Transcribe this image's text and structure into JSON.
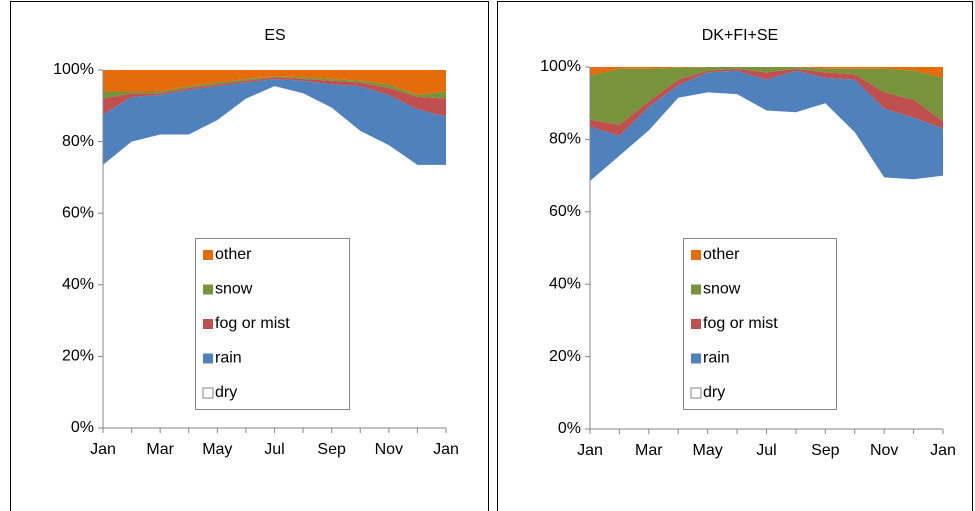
{
  "chart_data": [
    {
      "type": "stacked-area",
      "title": "ES",
      "categories": [
        "Jan",
        null,
        "Mar",
        null,
        "May",
        null,
        "Jul",
        null,
        "Sep",
        null,
        "Nov",
        null,
        "Jan"
      ],
      "ylim": [
        0,
        100
      ],
      "yticks": [
        {
          "value": 0,
          "label": "0%"
        },
        {
          "value": 20,
          "label": "20%"
        },
        {
          "value": 40,
          "label": "40%"
        },
        {
          "value": 60,
          "label": "60%"
        },
        {
          "value": 80,
          "label": "80%"
        },
        {
          "value": 100,
          "label": "100%"
        }
      ],
      "series": [
        {
          "name": "dry",
          "color": "#ffffff",
          "values": [
            73.5,
            80,
            82,
            82,
            86,
            92,
            95.5,
            93.5,
            89.5,
            83,
            79,
            73.5,
            73.5
          ]
        },
        {
          "name": "rain",
          "color": "#4f81bd",
          "values": [
            14,
            12.5,
            11,
            12.5,
            9.5,
            4.5,
            2,
            3.5,
            6.5,
            12.5,
            14,
            15.5,
            13.5
          ]
        },
        {
          "name": "fog or mist",
          "color": "#c0504d",
          "values": [
            4.5,
            1,
            0.5,
            0.5,
            0.5,
            0.5,
            0.5,
            0.5,
            1,
            1,
            2,
            3.5,
            5
          ]
        },
        {
          "name": "snow",
          "color": "#77933c",
          "values": [
            2,
            0.5,
            0.5,
            0.5,
            0.5,
            0.5,
            0.2,
            0.5,
            0.5,
            0.5,
            1,
            0.5,
            2
          ]
        },
        {
          "name": "other",
          "color": "#e46c0a",
          "values": [
            6,
            6,
            6,
            4.5,
            3.5,
            2.5,
            1.8,
            2,
            2.5,
            3,
            4,
            7,
            6
          ]
        }
      ]
    },
    {
      "type": "stacked-area",
      "title": "DK+FI+SE",
      "categories": [
        "Jan",
        null,
        "Mar",
        null,
        "May",
        null,
        "Jul",
        null,
        "Sep",
        null,
        "Nov",
        null,
        "Jan"
      ],
      "ylim": [
        0,
        100
      ],
      "yticks": [
        {
          "value": 0,
          "label": "0%"
        },
        {
          "value": 20,
          "label": "20%"
        },
        {
          "value": 40,
          "label": "40%"
        },
        {
          "value": 60,
          "label": "60%"
        },
        {
          "value": 80,
          "label": "80%"
        },
        {
          "value": 100,
          "label": "100%"
        }
      ],
      "series": [
        {
          "name": "dry",
          "color": "#ffffff",
          "values": [
            68.5,
            75.5,
            82.5,
            91.5,
            93,
            92.5,
            88,
            87.5,
            90,
            82,
            69.5,
            69,
            70
          ]
        },
        {
          "name": "rain",
          "color": "#4f81bd",
          "values": [
            15,
            5.5,
            6.5,
            3.5,
            5.5,
            6.5,
            8.5,
            11.5,
            7,
            14.5,
            19,
            17,
            13
          ]
        },
        {
          "name": "fog or mist",
          "color": "#c0504d",
          "values": [
            2,
            3,
            1.5,
            1.5,
            0.5,
            0.5,
            2,
            0.5,
            1.5,
            1.5,
            4.5,
            5,
            2
          ]
        },
        {
          "name": "snow",
          "color": "#77933c",
          "values": [
            12,
            15.5,
            9,
            3.3,
            1,
            0.5,
            1.5,
            0.5,
            1,
            1.5,
            6.5,
            8,
            12
          ]
        },
        {
          "name": "other",
          "color": "#e46c0a",
          "values": [
            2.5,
            0.5,
            0.5,
            0.2,
            0,
            0,
            0,
            0,
            0.5,
            0.5,
            0.5,
            1,
            3
          ]
        }
      ]
    }
  ]
}
